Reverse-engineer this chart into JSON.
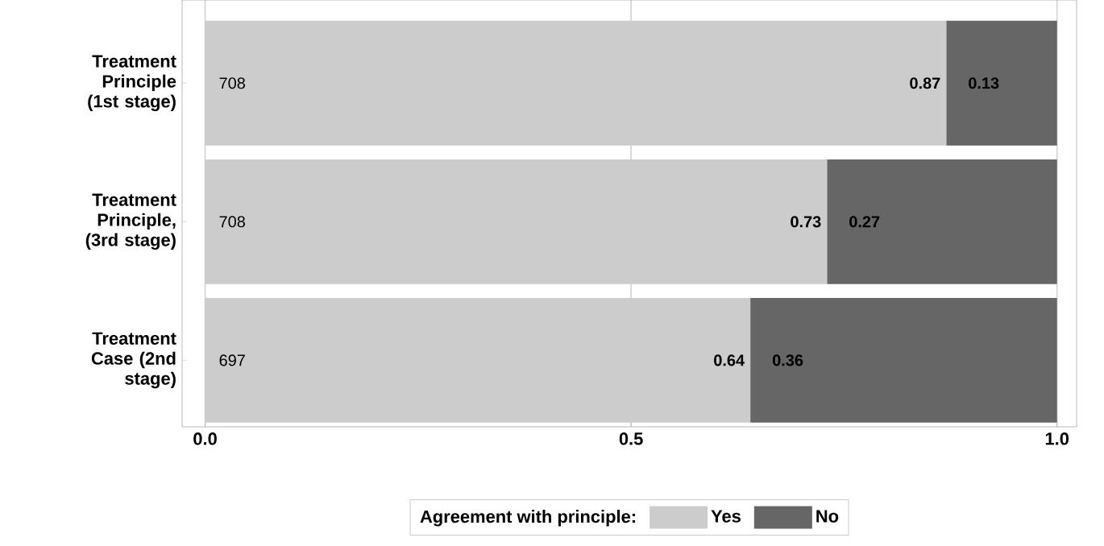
{
  "chart_data": {
    "type": "bar",
    "orientation": "horizontal",
    "stacked": true,
    "categories": [
      "Treatment Principle (1st stage)",
      "Treatment Principle, (3rd stage)",
      "Treatment Case (2nd stage)"
    ],
    "series": [
      {
        "name": "Yes",
        "color": "#cccccc",
        "values": [
          0.87,
          0.73,
          0.64
        ]
      },
      {
        "name": "No",
        "color": "#666666",
        "values": [
          0.13,
          0.27,
          0.36
        ]
      }
    ],
    "xlim": [
      -0.027,
      1.023
    ],
    "xticks": [
      {
        "value": 0,
        "label": "0.0"
      },
      {
        "value": 0.5,
        "label": "0.5"
      },
      {
        "value": 1,
        "label": "1.0"
      }
    ],
    "grid": "x",
    "legend": "bottom",
    "legend_title": "Agreement with principle:",
    "data_labels": true,
    "annotations": [
      "708",
      "708",
      "697"
    ]
  }
}
